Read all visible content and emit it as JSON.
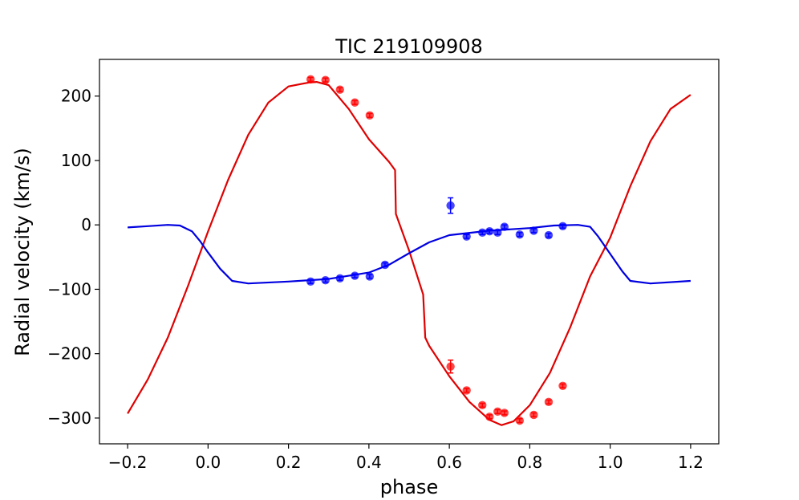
{
  "chart_data": {
    "type": "scatter",
    "title": "TIC 219109908",
    "xlabel": "phase",
    "ylabel": "Radial velocity (km/s)",
    "xlim": [
      -0.27,
      1.27
    ],
    "ylim": [
      -340,
      257
    ],
    "xticks": [
      -0.2,
      0.0,
      0.2,
      0.4,
      0.6,
      0.8,
      1.0,
      1.2
    ],
    "xtick_labels": [
      "−0.2",
      "0.0",
      "0.2",
      "0.4",
      "0.6",
      "0.8",
      "1.0",
      "1.2"
    ],
    "yticks": [
      -300,
      -200,
      -100,
      0,
      100,
      200
    ],
    "ytick_labels": [
      "−300",
      "−200",
      "−100",
      "0",
      "100",
      "200"
    ],
    "grid": false,
    "series": [
      {
        "name": "primary-data",
        "kind": "points",
        "color": "#ff0000",
        "x": [
          0.255,
          0.292,
          0.328,
          0.365,
          0.402,
          0.603,
          0.643,
          0.682,
          0.7,
          0.72,
          0.737,
          0.775,
          0.81,
          0.847,
          0.882
        ],
        "y": [
          226,
          225,
          210,
          190,
          170,
          -220,
          -257,
          -280,
          -298,
          -290,
          -292,
          -304,
          -295,
          -275,
          -250
        ],
        "err": [
          3,
          3,
          3,
          3,
          3,
          10,
          3,
          3,
          3,
          3,
          3,
          3,
          3,
          3,
          3
        ]
      },
      {
        "name": "secondary-data",
        "kind": "points",
        "color": "#0000ff",
        "x": [
          0.255,
          0.292,
          0.328,
          0.365,
          0.402,
          0.44,
          0.603,
          0.643,
          0.682,
          0.7,
          0.72,
          0.737,
          0.775,
          0.81,
          0.847,
          0.882
        ],
        "y": [
          -88,
          -86,
          -83,
          -79,
          -80,
          -62,
          30,
          -18,
          -12,
          -10,
          -12,
          -3,
          -15,
          -9,
          -16,
          -2
        ],
        "err": [
          3,
          3,
          3,
          3,
          3,
          3,
          12,
          3,
          3,
          3,
          3,
          3,
          3,
          3,
          3,
          3
        ]
      },
      {
        "name": "primary-model",
        "kind": "line",
        "color": "#e00000",
        "x": [
          -0.2,
          -0.15,
          -0.1,
          -0.05,
          0.0,
          0.05,
          0.1,
          0.15,
          0.2,
          0.25,
          0.27,
          0.3,
          0.35,
          0.4,
          0.45,
          0.465,
          0.467,
          0.5,
          0.535,
          0.54,
          0.55,
          0.6,
          0.65,
          0.7,
          0.73,
          0.76,
          0.8,
          0.85,
          0.9,
          0.95,
          1.0,
          1.05,
          1.1,
          1.15,
          1.2
        ],
        "y": [
          -293,
          -240,
          -175,
          -95,
          -10,
          70,
          140,
          190,
          215,
          221,
          222,
          217,
          180,
          133,
          98,
          85,
          17,
          -40,
          -108,
          -175,
          -188,
          -235,
          -275,
          -303,
          -311,
          -305,
          -280,
          -230,
          -160,
          -80,
          -20,
          60,
          130,
          180,
          202
        ]
      },
      {
        "name": "secondary-model",
        "kind": "line",
        "color": "#0000e0",
        "x": [
          -0.2,
          -0.15,
          -0.1,
          -0.07,
          -0.04,
          -0.02,
          0.0,
          0.03,
          0.06,
          0.1,
          0.2,
          0.3,
          0.4,
          0.45,
          0.5,
          0.55,
          0.6,
          0.7,
          0.8,
          0.86,
          0.92,
          0.95,
          0.97,
          1.0,
          1.03,
          1.05,
          1.1,
          1.2
        ],
        "y": [
          -4,
          -2,
          0,
          -1,
          -10,
          -25,
          -43,
          -68,
          -87,
          -91,
          -88,
          -84,
          -74,
          -62,
          -44,
          -27,
          -16,
          -9,
          -5,
          -1,
          0,
          -3,
          -18,
          -45,
          -72,
          -87,
          -91,
          -87
        ]
      }
    ]
  }
}
